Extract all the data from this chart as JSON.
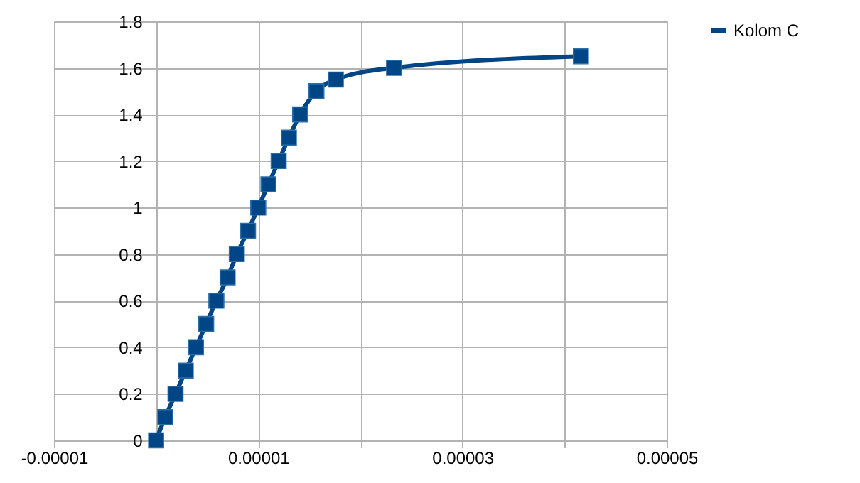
{
  "chart_data": {
    "type": "line",
    "marker": "square",
    "line_style": "solid",
    "grid": true,
    "legend": "right",
    "xlim": [
      -1e-05,
      5e-05
    ],
    "xticks": [
      {
        "value": -1e-05,
        "label": "-0.00001"
      },
      {
        "value": 0,
        "label": null
      },
      {
        "value": 1e-05,
        "label": "0.00001"
      },
      {
        "value": 2e-05,
        "label": null
      },
      {
        "value": 3e-05,
        "label": "0.00003"
      },
      {
        "value": 4e-05,
        "label": null
      },
      {
        "value": 5e-05,
        "label": "0.00005"
      }
    ],
    "ylim": [
      0,
      1.8
    ],
    "yticks": [
      0,
      0.2,
      0.4,
      0.6,
      0.8,
      1,
      1.2,
      1.4,
      1.6,
      1.8
    ],
    "series": [
      {
        "name": "Kolom C",
        "color": "#004586",
        "x": [
          0,
          9e-07,
          1.9e-06,
          2.9e-06,
          3.9e-06,
          4.9e-06,
          5.9e-06,
          7e-06,
          7.9e-06,
          9e-06,
          1e-05,
          1.1e-05,
          1.2e-05,
          1.3e-05,
          1.41e-05,
          1.57e-05,
          1.76e-05,
          2.33e-05,
          4.16e-05
        ],
        "values": [
          0,
          0.1,
          0.2,
          0.3,
          0.4,
          0.5,
          0.6,
          0.7,
          0.8,
          0.9,
          1,
          1.1,
          1.2,
          1.3,
          1.4,
          1.5,
          1.55,
          1.6,
          1.65
        ]
      }
    ]
  }
}
